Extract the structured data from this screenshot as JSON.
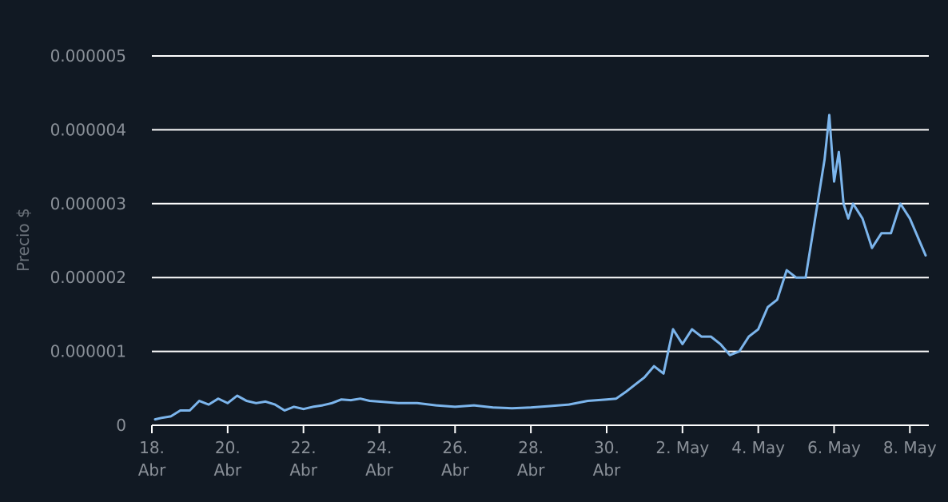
{
  "chart_data": {
    "type": "line",
    "title": "",
    "xlabel": "",
    "ylabel": "Precio $",
    "ylim": [
      0,
      5e-06
    ],
    "yticks": [
      {
        "value": 0,
        "label": "0"
      },
      {
        "value": 1e-06,
        "label": "0.000001"
      },
      {
        "value": 2e-06,
        "label": "0.000002"
      },
      {
        "value": 3e-06,
        "label": "0.000003"
      },
      {
        "value": 4e-06,
        "label": "0.000004"
      },
      {
        "value": 5e-06,
        "label": "0.000005"
      }
    ],
    "xlim": [
      "2024-04-18",
      "2024-05-08T12:00"
    ],
    "xticks": [
      {
        "value": "2024-04-18",
        "lines": [
          "18.",
          "Abr"
        ]
      },
      {
        "value": "2024-04-20",
        "lines": [
          "20.",
          "Abr"
        ]
      },
      {
        "value": "2024-04-22",
        "lines": [
          "22.",
          "Abr"
        ]
      },
      {
        "value": "2024-04-24",
        "lines": [
          "24.",
          "Abr"
        ]
      },
      {
        "value": "2024-04-26",
        "lines": [
          "26.",
          "Abr"
        ]
      },
      {
        "value": "2024-04-28",
        "lines": [
          "28.",
          "Abr"
        ]
      },
      {
        "value": "2024-04-30",
        "lines": [
          "30.",
          "Abr"
        ]
      },
      {
        "value": "2024-05-02",
        "lines": [
          "2. May"
        ]
      },
      {
        "value": "2024-05-04",
        "lines": [
          "4. May"
        ]
      },
      {
        "value": "2024-05-06",
        "lines": [
          "6. May"
        ]
      },
      {
        "value": "2024-05-08",
        "lines": [
          "8. May"
        ]
      }
    ],
    "grid": true,
    "line_color": "#7cb5ec",
    "series": [
      {
        "x": [
          "2024-04-18T02:00",
          "2024-04-18T06:00",
          "2024-04-18T12:00",
          "2024-04-18T18:00",
          "2024-04-19T00:00",
          "2024-04-19T06:00",
          "2024-04-19T12:00",
          "2024-04-19T18:00",
          "2024-04-20T00:00",
          "2024-04-20T06:00",
          "2024-04-20T12:00",
          "2024-04-20T18:00",
          "2024-04-21T00:00",
          "2024-04-21T06:00",
          "2024-04-21T12:00",
          "2024-04-21T18:00",
          "2024-04-22T00:00",
          "2024-04-22T06:00",
          "2024-04-22T12:00",
          "2024-04-22T18:00",
          "2024-04-23T00:00",
          "2024-04-23T06:00",
          "2024-04-23T12:00",
          "2024-04-23T18:00",
          "2024-04-24T00:00",
          "2024-04-24T12:00",
          "2024-04-25T00:00",
          "2024-04-25T12:00",
          "2024-04-26T00:00",
          "2024-04-26T12:00",
          "2024-04-27T00:00",
          "2024-04-27T12:00",
          "2024-04-28T00:00",
          "2024-04-28T12:00",
          "2024-04-29T00:00",
          "2024-04-29T12:00",
          "2024-04-30T00:00",
          "2024-04-30T06:00",
          "2024-04-30T12:00",
          "2024-04-30T18:00",
          "2024-05-01T00:00",
          "2024-05-01T06:00",
          "2024-05-01T12:00",
          "2024-05-01T15:00",
          "2024-05-01T18:00",
          "2024-05-02T00:00",
          "2024-05-02T06:00",
          "2024-05-02T12:00",
          "2024-05-02T18:00",
          "2024-05-03T00:00",
          "2024-05-03T06:00",
          "2024-05-03T12:00",
          "2024-05-03T18:00",
          "2024-05-04T00:00",
          "2024-05-04T06:00",
          "2024-05-04T12:00",
          "2024-05-04T18:00",
          "2024-05-05T00:00",
          "2024-05-05T06:00",
          "2024-05-05T12:00",
          "2024-05-05T18:00",
          "2024-05-05T21:00",
          "2024-05-06T00:00",
          "2024-05-06T03:00",
          "2024-05-06T06:00",
          "2024-05-06T09:00",
          "2024-05-06T12:00",
          "2024-05-06T18:00",
          "2024-05-07T00:00",
          "2024-05-07T06:00",
          "2024-05-07T12:00",
          "2024-05-07T18:00",
          "2024-05-08T00:00",
          "2024-05-08T06:00",
          "2024-05-08T10:00"
        ],
        "values": [
          8e-08,
          1e-07,
          1.2e-07,
          2e-07,
          2e-07,
          3.3e-07,
          2.8e-07,
          3.6e-07,
          3e-07,
          4e-07,
          3.3e-07,
          3e-07,
          3.2e-07,
          2.8e-07,
          2e-07,
          2.5e-07,
          2.2e-07,
          2.5e-07,
          2.7e-07,
          3e-07,
          3.5e-07,
          3.4e-07,
          3.6e-07,
          3.3e-07,
          3.2e-07,
          3e-07,
          3e-07,
          2.7e-07,
          2.5e-07,
          2.7e-07,
          2.4e-07,
          2.3e-07,
          2.4e-07,
          2.6e-07,
          2.8e-07,
          3.3e-07,
          3.5e-07,
          3.6e-07,
          4.5e-07,
          5.5e-07,
          6.5e-07,
          8e-07,
          7e-07,
          1e-06,
          1.3e-06,
          1.1e-06,
          1.3e-06,
          1.2e-06,
          1.2e-06,
          1.1e-06,
          9.5e-07,
          1e-06,
          1.2e-06,
          1.3e-06,
          1.6e-06,
          1.7e-06,
          2.1e-06,
          2e-06,
          2e-06,
          2.8e-06,
          3.6e-06,
          4.2e-06,
          3.3e-06,
          3.7e-06,
          3e-06,
          2.8e-06,
          3e-06,
          2.8e-06,
          2.4e-06,
          2.6e-06,
          2.6e-06,
          3e-06,
          2.8e-06,
          2.5e-06,
          2.3e-06
        ]
      }
    ]
  }
}
